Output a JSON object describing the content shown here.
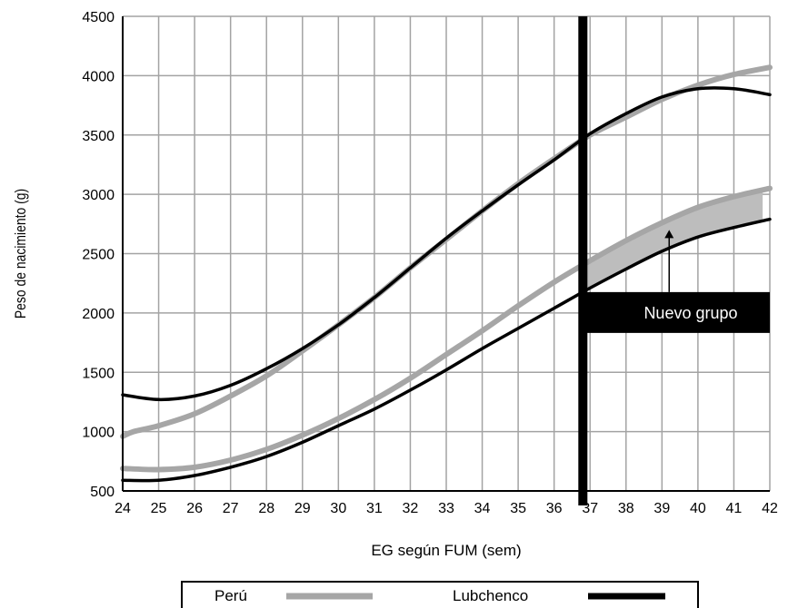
{
  "chart_data": {
    "type": "line",
    "xlabel": "EG según FUM (sem)",
    "ylabel": "Peso de nacimiento (g)",
    "xlim": [
      24,
      42
    ],
    "ylim": [
      500,
      4500
    ],
    "x_ticks": [
      24,
      25,
      26,
      27,
      28,
      29,
      30,
      31,
      32,
      33,
      34,
      35,
      36,
      37,
      38,
      39,
      40,
      41,
      42
    ],
    "y_ticks": [
      500,
      1000,
      1500,
      2000,
      2500,
      3000,
      3500,
      4000,
      4500
    ],
    "vertical_gridlines_x": [
      24,
      25,
      26,
      27,
      28,
      29,
      30,
      31,
      32,
      33,
      34,
      35,
      36,
      36.8,
      37,
      38,
      39,
      40,
      41,
      42
    ],
    "grid": true,
    "reference_line": {
      "x": 36.8,
      "color": "#000000"
    },
    "annotation": {
      "text": "Nuevo grupo",
      "x": 39.8,
      "y": 2000,
      "arrow_to": {
        "x": 39.2,
        "y": 2700
      }
    },
    "shaded_region": {
      "between_series": [
        "Perú P10",
        "Lubchenco P10"
      ],
      "x_from": 36.8,
      "x_to": 42,
      "color": "#bdbdbd"
    },
    "series": [
      {
        "legend": "Perú",
        "color": "#a6a6a6",
        "x": [
          24,
          24.3,
          25,
          26,
          27,
          28,
          29,
          30,
          31,
          32,
          33,
          34,
          35,
          36,
          37,
          38,
          39,
          40,
          41,
          42
        ],
        "y": [
          960,
          1000,
          1050,
          1150,
          1300,
          1470,
          1680,
          1900,
          2130,
          2380,
          2620,
          2860,
          3090,
          3300,
          3500,
          3650,
          3800,
          3920,
          4010,
          4070
        ]
      },
      {
        "legend": "Perú",
        "color": "#a6a6a6",
        "x": [
          24,
          25,
          26,
          27,
          28,
          29,
          30,
          31,
          32,
          33,
          34,
          35,
          36,
          37,
          38,
          39,
          40,
          41,
          42
        ],
        "y": [
          690,
          680,
          700,
          760,
          850,
          970,
          1110,
          1270,
          1450,
          1650,
          1850,
          2060,
          2260,
          2440,
          2610,
          2760,
          2890,
          2980,
          3050
        ]
      },
      {
        "legend": "Lubchenco",
        "color": "#000000",
        "x": [
          24,
          25,
          26,
          27,
          28,
          29,
          30,
          31,
          32,
          33,
          34,
          35,
          36,
          37,
          38,
          39,
          40,
          41,
          42
        ],
        "y": [
          1310,
          1270,
          1300,
          1390,
          1530,
          1700,
          1900,
          2130,
          2380,
          2630,
          2860,
          3080,
          3290,
          3510,
          3680,
          3820,
          3890,
          3890,
          3840
        ]
      },
      {
        "legend": "Lubchenco",
        "color": "#000000",
        "x": [
          24,
          25,
          26,
          27,
          28,
          29,
          30,
          31,
          32,
          33,
          34,
          35,
          36,
          37,
          38,
          39,
          40,
          41,
          42
        ],
        "y": [
          590,
          590,
          630,
          700,
          790,
          910,
          1050,
          1190,
          1350,
          1520,
          1700,
          1870,
          2040,
          2210,
          2370,
          2520,
          2640,
          2720,
          2790
        ]
      }
    ],
    "legend": {
      "position": "bottom",
      "entries": [
        {
          "label": "Perú",
          "color": "#a6a6a6"
        },
        {
          "label": "Lubchenco",
          "color": "#000000"
        }
      ]
    }
  }
}
